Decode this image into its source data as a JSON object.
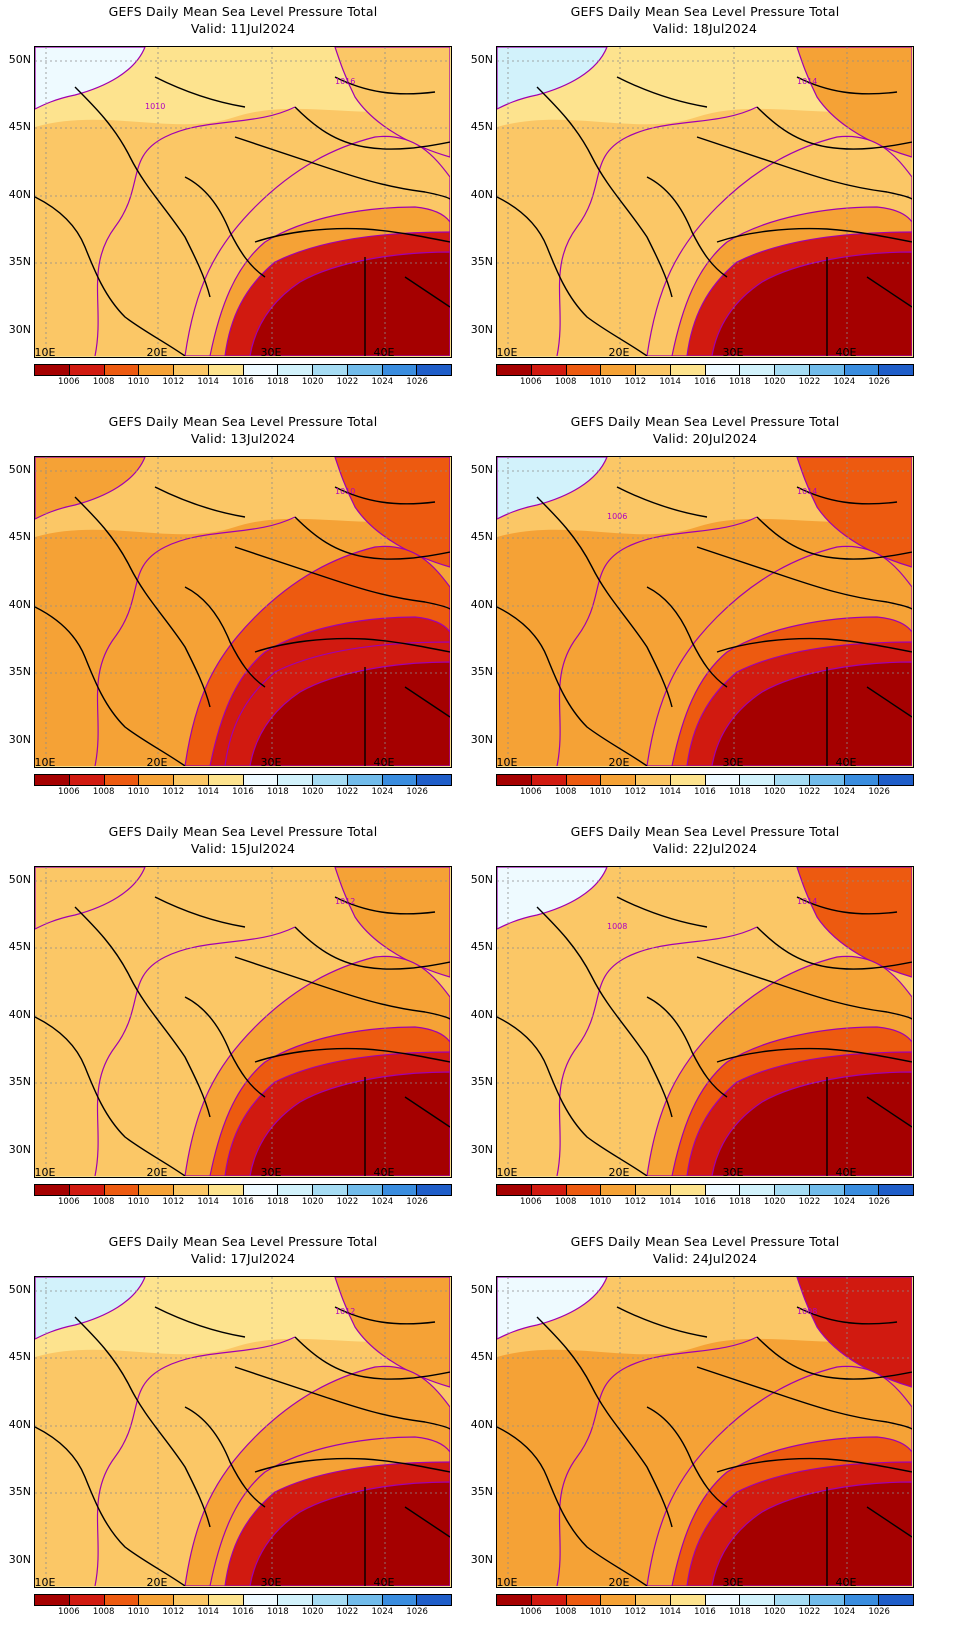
{
  "figure": {
    "title": "GEFS Daily Mean Sea Level Pressure Total",
    "valid_prefix": "Valid:",
    "lat_labels": [
      "50N",
      "45N",
      "40N",
      "35N",
      "30N"
    ],
    "lon_labels": [
      "10E",
      "20E",
      "30E",
      "40E"
    ],
    "colorbar": {
      "labels": [
        "1006",
        "1008",
        "1010",
        "1012",
        "1014",
        "1016",
        "1018",
        "1020",
        "1022",
        "1024",
        "1026"
      ],
      "colors": [
        "#a50000",
        "#d11a10",
        "#ed5a10",
        "#f5a236",
        "#fbc766",
        "#fde38e",
        "#eefaff",
        "#d2f2fb",
        "#a6dcf3",
        "#72bceb",
        "#3a8ddf",
        "#1f5ec9"
      ]
    }
  },
  "panels": [
    {
      "valid": "Valid:  11Jul2024",
      "contour_labels": [
        "1016",
        "1010"
      ]
    },
    {
      "valid": "Valid:  18Jul2024",
      "contour_labels": [
        "1014"
      ]
    },
    {
      "valid": "Valid:  13Jul2024",
      "contour_labels": [
        "1010"
      ]
    },
    {
      "valid": "Valid:  20Jul2024",
      "contour_labels": [
        "1014",
        "1006"
      ]
    },
    {
      "valid": "Valid:  15Jul2024",
      "contour_labels": [
        "1012"
      ]
    },
    {
      "valid": "Valid:  22Jul2024",
      "contour_labels": [
        "1014",
        "1008"
      ]
    },
    {
      "valid": "Valid:  17Jul2024",
      "contour_labels": [
        "1012"
      ]
    },
    {
      "valid": "Valid:  24Jul2024",
      "contour_labels": [
        "1008"
      ]
    }
  ]
}
